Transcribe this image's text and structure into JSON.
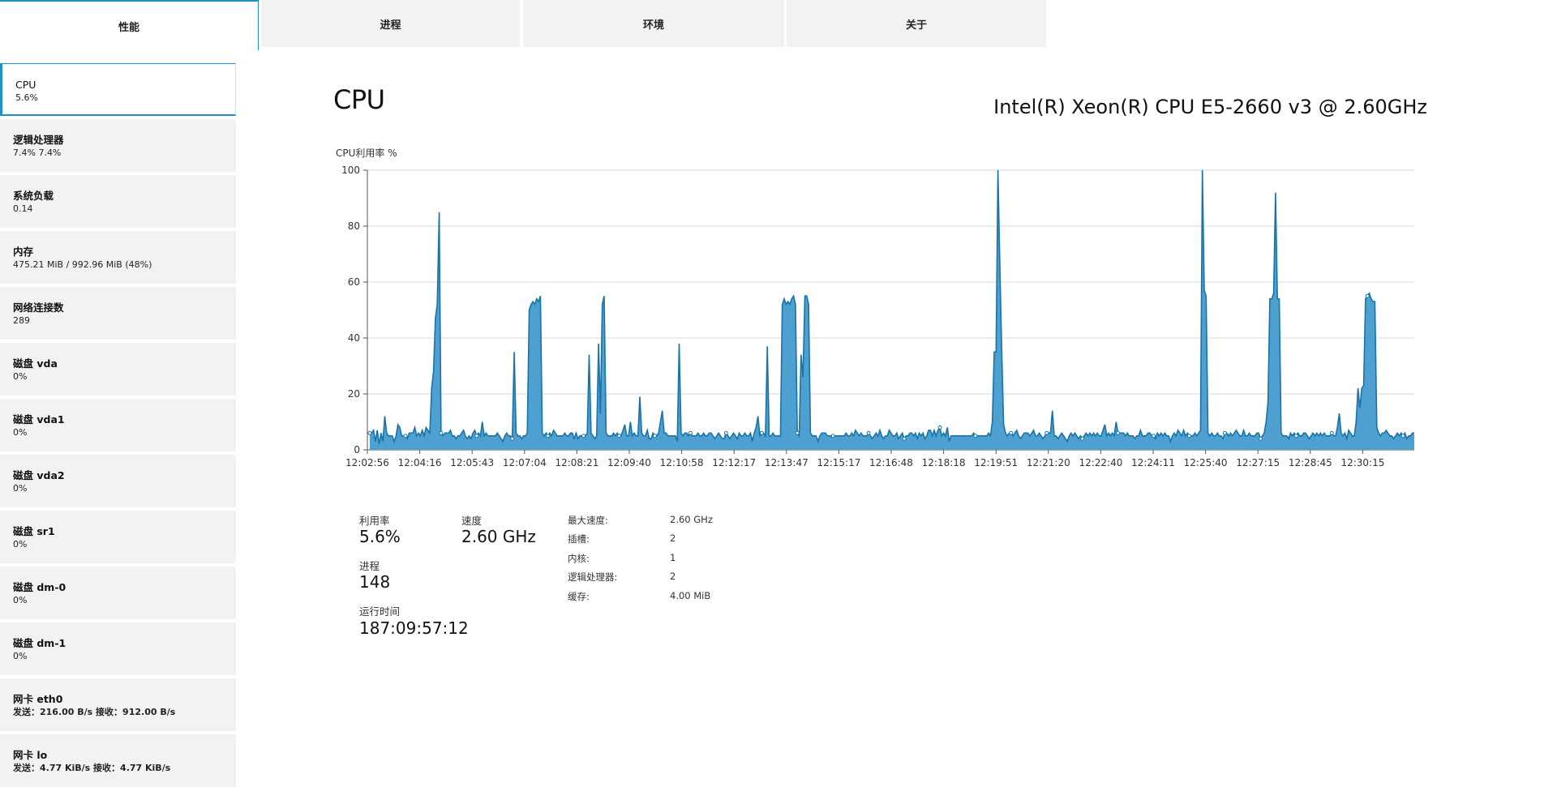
{
  "tabs": [
    {
      "label": "性能",
      "active": true
    },
    {
      "label": "进程",
      "active": false
    },
    {
      "label": "环境",
      "active": false
    },
    {
      "label": "关于",
      "active": false
    }
  ],
  "sidebar": {
    "items": [
      {
        "title": "CPU",
        "value": "5.6%"
      },
      {
        "title": "逻辑处理器",
        "value": "7.4% 7.4%"
      },
      {
        "title": "系统负载",
        "value": "0.14"
      },
      {
        "title": "内存",
        "value": "475.21 MiB / 992.96 MiB (48%)"
      },
      {
        "title": "网络连接数",
        "value": "289"
      },
      {
        "title": "磁盘 vda",
        "value": "0%"
      },
      {
        "title": "磁盘 vda1",
        "value": "0%"
      },
      {
        "title": "磁盘 vda2",
        "value": "0%"
      },
      {
        "title": "磁盘 sr1",
        "value": "0%"
      },
      {
        "title": "磁盘 dm-0",
        "value": "0%"
      },
      {
        "title": "磁盘 dm-1",
        "value": "0%"
      },
      {
        "title": "网卡 eth0",
        "value": "发送：216.00 B/s 接收：912.00 B/s"
      },
      {
        "title": "网卡 lo",
        "value": "发送：4.77 KiB/s 接收：4.77 KiB/s"
      }
    ]
  },
  "main": {
    "title": "CPU",
    "cpu_model": "Intel(R) Xeon(R) CPU E5-2660 v3 @ 2.60GHz",
    "chart_label": "CPU利用率 %"
  },
  "stats": {
    "utilization_label": "利用率",
    "utilization_value": "5.6%",
    "speed_label": "速度",
    "speed_value": "2.60 GHz",
    "process_label": "进程",
    "process_value": "148",
    "uptime_label": "运行时间",
    "uptime_value": "187:09:57:12"
  },
  "specs": [
    {
      "label": "最大速度:",
      "value": "2.60 GHz"
    },
    {
      "label": "插槽:",
      "value": "2"
    },
    {
      "label": "内核:",
      "value": "1"
    },
    {
      "label": "逻辑处理器:",
      "value": "2"
    },
    {
      "label": "缓存:",
      "value": "4.00 MiB"
    }
  ],
  "colors": {
    "accent": "#1e90c8",
    "area_fill": "#4ea0d0",
    "area_line": "#1874a8",
    "grid": "#d8d8d8",
    "tab_bg": "#f2f2f2"
  },
  "chart_data": {
    "type": "area",
    "title": "",
    "ylabel": "CPU利用率 %",
    "ylim": [
      0,
      100
    ],
    "yticks": [
      0,
      20,
      40,
      60,
      80,
      100
    ],
    "xticks": [
      "12:02:56",
      "12:04:16",
      "12:05:43",
      "12:07:04",
      "12:08:21",
      "12:09:40",
      "12:10:58",
      "12:12:17",
      "12:13:47",
      "12:15:17",
      "12:16:48",
      "12:18:18",
      "12:19:51",
      "12:21:20",
      "12:22:40",
      "12:24:11",
      "12:25:40",
      "12:27:15",
      "12:28:45",
      "12:30:15"
    ],
    "grid": true,
    "legend": "none",
    "series": [
      {
        "values": [
          6,
          6,
          7,
          3,
          7,
          2,
          6,
          3,
          12,
          6,
          5,
          5,
          5,
          3,
          5,
          9,
          8,
          5,
          5,
          5,
          4,
          6,
          6,
          6,
          8,
          5,
          6,
          5,
          7,
          5,
          8,
          7,
          6,
          22,
          28,
          47,
          52,
          85,
          6,
          5,
          6,
          6,
          6,
          7,
          5,
          5,
          4,
          5,
          5,
          6,
          7,
          5,
          4,
          5,
          4,
          6,
          7,
          5,
          6,
          5,
          10,
          5,
          6,
          5,
          5,
          5,
          5,
          5,
          6,
          5,
          4,
          3,
          5,
          6,
          5,
          5,
          4,
          35,
          6,
          5,
          5,
          4,
          5,
          5,
          6,
          50,
          52,
          53,
          52,
          54,
          53,
          55,
          6,
          5,
          6,
          5,
          6,
          5,
          7,
          6,
          5,
          5,
          5,
          5,
          6,
          5,
          5,
          6,
          6,
          4,
          6,
          4,
          5,
          5,
          5,
          5,
          6,
          34,
          6,
          5,
          4,
          5,
          38,
          13,
          52,
          55,
          6,
          5,
          5,
          5,
          6,
          5,
          6,
          5,
          5,
          7,
          9,
          5,
          5,
          10,
          5,
          6,
          5,
          5,
          19,
          6,
          5,
          5,
          7,
          4,
          4,
          6,
          5,
          5,
          6,
          10,
          14,
          6,
          6,
          5,
          5,
          5,
          5,
          5,
          3,
          38,
          6,
          5,
          6,
          6,
          5,
          6,
          5,
          5,
          5,
          6,
          5,
          5,
          6,
          5,
          5,
          6,
          6,
          5,
          4,
          5,
          6,
          5,
          4,
          4,
          6,
          5,
          4,
          5,
          6,
          5,
          4,
          6,
          5,
          5,
          6,
          5,
          5,
          6,
          3,
          6,
          8,
          12,
          5,
          6,
          6,
          5,
          37,
          5,
          5,
          6,
          5,
          5,
          5,
          5,
          52,
          54,
          52,
          53,
          52,
          54,
          55,
          52,
          6,
          5,
          34,
          26,
          55,
          55,
          52,
          6,
          5,
          5,
          5,
          3,
          5,
          6,
          6,
          6,
          5,
          5,
          5,
          5,
          5,
          5,
          5,
          5,
          5,
          5,
          6,
          5,
          5,
          6,
          5,
          7,
          6,
          5,
          6,
          5,
          5,
          5,
          6,
          5,
          4,
          5,
          6,
          5,
          7,
          5,
          4,
          5,
          5,
          7,
          6,
          5,
          5,
          6,
          4,
          5,
          6,
          4,
          5,
          5,
          6,
          6,
          5,
          6,
          4,
          6,
          5,
          6,
          4,
          5,
          7,
          7,
          5,
          7,
          5,
          7,
          8,
          5,
          6,
          5,
          8,
          3,
          5,
          5,
          5,
          5,
          5,
          5,
          5,
          5,
          5,
          5,
          5,
          5,
          6,
          5,
          5,
          5,
          5,
          5,
          5,
          5,
          6,
          5,
          10,
          35,
          35,
          100,
          65,
          35,
          9,
          6,
          5,
          6,
          6,
          5,
          6,
          7,
          5,
          4,
          5,
          6,
          6,
          6,
          5,
          6,
          7,
          5,
          5,
          6,
          5,
          4,
          5,
          6,
          6,
          6,
          14,
          5,
          5,
          4,
          5,
          6,
          5,
          4,
          3,
          5,
          6,
          5,
          6,
          5,
          4,
          5,
          4,
          5,
          6,
          5,
          6,
          5,
          6,
          5,
          6,
          5,
          5,
          7,
          9,
          5,
          6,
          5,
          6,
          5,
          10,
          6,
          6,
          6,
          6,
          5,
          6,
          5,
          5,
          5,
          4,
          5,
          5,
          7,
          5,
          5,
          5,
          6,
          6,
          5,
          5,
          4,
          6,
          5,
          6,
          5,
          6,
          5,
          5,
          3,
          5,
          6,
          5,
          7,
          6,
          5,
          7,
          5,
          6,
          5,
          5,
          5,
          6,
          5,
          6,
          7,
          100,
          57,
          55,
          6,
          5,
          6,
          5,
          5,
          6,
          5,
          5,
          4,
          6,
          6,
          5,
          6,
          5,
          6,
          7,
          6,
          5,
          5,
          7,
          5,
          5,
          6,
          5,
          5,
          5,
          6,
          6,
          4,
          5,
          6,
          10,
          17,
          54,
          54,
          56,
          92,
          54,
          54,
          6,
          5,
          5,
          5,
          4,
          6,
          5,
          6,
          5,
          6,
          5,
          5,
          6,
          6,
          5,
          4,
          5,
          6,
          5,
          6,
          5,
          6,
          5,
          6,
          5,
          5,
          5,
          6,
          5,
          5,
          8,
          13,
          6,
          5,
          6,
          4,
          7,
          6,
          5,
          5,
          10,
          22,
          15,
          22,
          23,
          54,
          55,
          56,
          54,
          53,
          53,
          8,
          6,
          5,
          6,
          6,
          7,
          6,
          5,
          5,
          4,
          5,
          6,
          5,
          6,
          5,
          6,
          4,
          5,
          5,
          6,
          6
        ]
      }
    ]
  }
}
